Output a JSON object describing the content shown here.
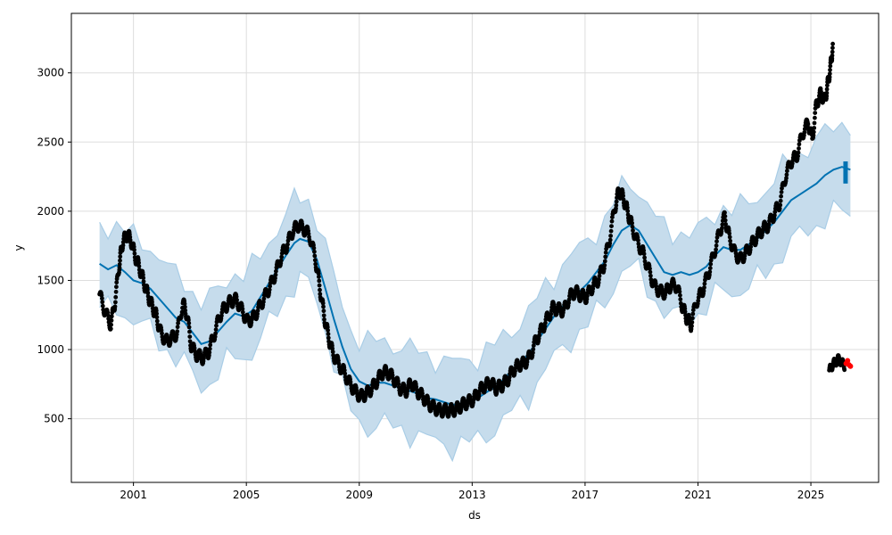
{
  "chart_data": {
    "type": "line",
    "title": "",
    "xlabel": "ds",
    "ylabel": "y",
    "xlim": [
      1998.8,
      2027.4
    ],
    "ylim": [
      40,
      3430
    ],
    "grid": true,
    "legend": "none",
    "x_ticks": [
      {
        "value": 2001,
        "label": "2001"
      },
      {
        "value": 2005,
        "label": "2005"
      },
      {
        "value": 2009,
        "label": "2009"
      },
      {
        "value": 2013,
        "label": "2013"
      },
      {
        "value": 2017,
        "label": "2017"
      },
      {
        "value": 2021,
        "label": "2021"
      },
      {
        "value": 2025,
        "label": "2025"
      }
    ],
    "y_ticks": [
      {
        "value": 500,
        "label": "500"
      },
      {
        "value": 1000,
        "label": "1000"
      },
      {
        "value": 1500,
        "label": "1500"
      },
      {
        "value": 2000,
        "label": "2000"
      },
      {
        "value": 2500,
        "label": "2500"
      },
      {
        "value": 3000,
        "label": "3000"
      }
    ],
    "colors": {
      "observed": "#000000",
      "forecast_line": "#0072B2",
      "interval_fill": "#c6dcec",
      "interval_edge": "#a9cde6",
      "highlight": "#ff0000",
      "grid": "#dddddd"
    },
    "series": [
      {
        "kind": "observed",
        "points": [
          [
            1999.8,
            1400
          ],
          [
            2000.0,
            1270
          ],
          [
            2000.2,
            1180
          ],
          [
            2000.35,
            1350
          ],
          [
            2000.5,
            1620
          ],
          [
            2000.6,
            1760
          ],
          [
            2000.75,
            1830
          ],
          [
            2000.9,
            1800
          ],
          [
            2001.05,
            1680
          ],
          [
            2001.2,
            1600
          ],
          [
            2001.35,
            1500
          ],
          [
            2001.5,
            1400
          ],
          [
            2001.65,
            1320
          ],
          [
            2001.8,
            1250
          ],
          [
            2001.95,
            1130
          ],
          [
            2002.15,
            1060
          ],
          [
            2002.35,
            1080
          ],
          [
            2002.55,
            1120
          ],
          [
            2002.75,
            1340
          ],
          [
            2002.9,
            1250
          ],
          [
            2003.05,
            1020
          ],
          [
            2003.25,
            960
          ],
          [
            2003.45,
            940
          ],
          [
            2003.65,
            980
          ],
          [
            2003.85,
            1100
          ],
          [
            2004.05,
            1240
          ],
          [
            2004.25,
            1310
          ],
          [
            2004.45,
            1350
          ],
          [
            2004.65,
            1360
          ],
          [
            2004.85,
            1280
          ],
          [
            2005.05,
            1200
          ],
          [
            2005.25,
            1230
          ],
          [
            2005.45,
            1300
          ],
          [
            2005.65,
            1380
          ],
          [
            2005.85,
            1460
          ],
          [
            2006.05,
            1560
          ],
          [
            2006.25,
            1680
          ],
          [
            2006.45,
            1760
          ],
          [
            2006.65,
            1860
          ],
          [
            2006.85,
            1900
          ],
          [
            2007.05,
            1870
          ],
          [
            2007.25,
            1820
          ],
          [
            2007.45,
            1650
          ],
          [
            2007.6,
            1450
          ],
          [
            2007.75,
            1250
          ],
          [
            2007.9,
            1100
          ],
          [
            2008.05,
            980
          ],
          [
            2008.25,
            900
          ],
          [
            2008.45,
            840
          ],
          [
            2008.65,
            760
          ],
          [
            2008.85,
            700
          ],
          [
            2009.05,
            660
          ],
          [
            2009.25,
            680
          ],
          [
            2009.45,
            720
          ],
          [
            2009.65,
            780
          ],
          [
            2009.85,
            840
          ],
          [
            2010.05,
            830
          ],
          [
            2010.25,
            780
          ],
          [
            2010.45,
            720
          ],
          [
            2010.65,
            700
          ],
          [
            2010.85,
            760
          ],
          [
            2011.05,
            700
          ],
          [
            2011.25,
            660
          ],
          [
            2011.45,
            610
          ],
          [
            2011.65,
            580
          ],
          [
            2011.85,
            560
          ],
          [
            2012.05,
            560
          ],
          [
            2012.25,
            560
          ],
          [
            2012.45,
            570
          ],
          [
            2012.65,
            600
          ],
          [
            2012.85,
            620
          ],
          [
            2013.05,
            640
          ],
          [
            2013.25,
            700
          ],
          [
            2013.45,
            740
          ],
          [
            2013.65,
            760
          ],
          [
            2013.85,
            720
          ],
          [
            2014.05,
            740
          ],
          [
            2014.25,
            780
          ],
          [
            2014.45,
            850
          ],
          [
            2014.65,
            890
          ],
          [
            2014.85,
            900
          ],
          [
            2015.05,
            950
          ],
          [
            2015.25,
            1060
          ],
          [
            2015.45,
            1140
          ],
          [
            2015.65,
            1220
          ],
          [
            2015.85,
            1300
          ],
          [
            2016.05,
            1290
          ],
          [
            2016.25,
            1280
          ],
          [
            2016.45,
            1380
          ],
          [
            2016.65,
            1420
          ],
          [
            2016.85,
            1390
          ],
          [
            2017.05,
            1380
          ],
          [
            2017.25,
            1450
          ],
          [
            2017.45,
            1500
          ],
          [
            2017.65,
            1600
          ],
          [
            2017.85,
            1780
          ],
          [
            2018.05,
            2020
          ],
          [
            2018.2,
            2150
          ],
          [
            2018.35,
            2100
          ],
          [
            2018.5,
            2000
          ],
          [
            2018.65,
            1900
          ],
          [
            2018.85,
            1780
          ],
          [
            2019.05,
            1700
          ],
          [
            2019.25,
            1580
          ],
          [
            2019.45,
            1460
          ],
          [
            2019.65,
            1420
          ],
          [
            2019.85,
            1410
          ],
          [
            2020.05,
            1470
          ],
          [
            2020.25,
            1460
          ],
          [
            2020.45,
            1310
          ],
          [
            2020.6,
            1230
          ],
          [
            2020.75,
            1180
          ],
          [
            2020.95,
            1350
          ],
          [
            2021.15,
            1420
          ],
          [
            2021.35,
            1540
          ],
          [
            2021.55,
            1680
          ],
          [
            2021.75,
            1840
          ],
          [
            2021.95,
            1960
          ],
          [
            2022.1,
            1820
          ],
          [
            2022.3,
            1700
          ],
          [
            2022.5,
            1650
          ],
          [
            2022.7,
            1700
          ],
          [
            2022.9,
            1760
          ],
          [
            2023.1,
            1820
          ],
          [
            2023.3,
            1870
          ],
          [
            2023.5,
            1900
          ],
          [
            2023.7,
            1980
          ],
          [
            2023.9,
            2060
          ],
          [
            2024.1,
            2250
          ],
          [
            2024.3,
            2360
          ],
          [
            2024.5,
            2400
          ],
          [
            2024.7,
            2560
          ],
          [
            2024.9,
            2640
          ],
          [
            2025.05,
            2520
          ],
          [
            2025.2,
            2780
          ],
          [
            2025.35,
            2850
          ],
          [
            2025.5,
            2800
          ],
          [
            2025.6,
            2920
          ],
          [
            2025.7,
            3050
          ],
          [
            2025.78,
            3200
          ]
        ]
      },
      {
        "kind": "observed_low_cluster",
        "points": [
          [
            2025.65,
            850
          ],
          [
            2025.72,
            870
          ],
          [
            2025.8,
            900
          ],
          [
            2025.88,
            910
          ],
          [
            2025.96,
            930
          ],
          [
            2026.04,
            920
          ],
          [
            2026.12,
            900
          ],
          [
            2026.2,
            880
          ]
        ]
      },
      {
        "kind": "highlight",
        "points": [
          [
            2026.25,
            900
          ],
          [
            2026.3,
            920
          ],
          [
            2026.35,
            890
          ],
          [
            2026.4,
            880
          ]
        ]
      },
      {
        "kind": "forecast",
        "points": [
          [
            1999.8,
            1620
          ],
          [
            2000.1,
            1580
          ],
          [
            2000.4,
            1610
          ],
          [
            2000.7,
            1560
          ],
          [
            2001.0,
            1500
          ],
          [
            2001.3,
            1480
          ],
          [
            2001.6,
            1440
          ],
          [
            2001.9,
            1370
          ],
          [
            2002.2,
            1300
          ],
          [
            2002.5,
            1230
          ],
          [
            2002.8,
            1200
          ],
          [
            2003.1,
            1120
          ],
          [
            2003.4,
            1040
          ],
          [
            2003.7,
            1060
          ],
          [
            2004.0,
            1130
          ],
          [
            2004.3,
            1200
          ],
          [
            2004.6,
            1260
          ],
          [
            2004.9,
            1240
          ],
          [
            2005.2,
            1280
          ],
          [
            2005.5,
            1380
          ],
          [
            2005.8,
            1480
          ],
          [
            2006.1,
            1580
          ],
          [
            2006.4,
            1680
          ],
          [
            2006.7,
            1770
          ],
          [
            2006.9,
            1800
          ],
          [
            2007.2,
            1780
          ],
          [
            2007.5,
            1650
          ],
          [
            2007.8,
            1440
          ],
          [
            2008.1,
            1220
          ],
          [
            2008.4,
            1020
          ],
          [
            2008.7,
            860
          ],
          [
            2009.0,
            770
          ],
          [
            2009.3,
            740
          ],
          [
            2009.6,
            760
          ],
          [
            2009.9,
            760
          ],
          [
            2010.2,
            740
          ],
          [
            2010.5,
            720
          ],
          [
            2010.8,
            700
          ],
          [
            2011.1,
            680
          ],
          [
            2011.4,
            650
          ],
          [
            2011.7,
            640
          ],
          [
            2012.0,
            620
          ],
          [
            2012.3,
            600
          ],
          [
            2012.6,
            610
          ],
          [
            2012.9,
            630
          ],
          [
            2013.2,
            650
          ],
          [
            2013.5,
            690
          ],
          [
            2013.8,
            730
          ],
          [
            2014.1,
            780
          ],
          [
            2014.4,
            850
          ],
          [
            2014.7,
            900
          ],
          [
            2015.0,
            970
          ],
          [
            2015.3,
            1060
          ],
          [
            2015.6,
            1150
          ],
          [
            2015.9,
            1240
          ],
          [
            2016.2,
            1310
          ],
          [
            2016.5,
            1380
          ],
          [
            2016.8,
            1420
          ],
          [
            2017.1,
            1480
          ],
          [
            2017.4,
            1560
          ],
          [
            2017.7,
            1640
          ],
          [
            2018.0,
            1760
          ],
          [
            2018.3,
            1860
          ],
          [
            2018.6,
            1900
          ],
          [
            2018.9,
            1860
          ],
          [
            2019.2,
            1760
          ],
          [
            2019.5,
            1660
          ],
          [
            2019.8,
            1560
          ],
          [
            2020.1,
            1540
          ],
          [
            2020.4,
            1560
          ],
          [
            2020.7,
            1540
          ],
          [
            2021.0,
            1560
          ],
          [
            2021.3,
            1600
          ],
          [
            2021.6,
            1680
          ],
          [
            2021.9,
            1740
          ],
          [
            2022.2,
            1720
          ],
          [
            2022.5,
            1720
          ],
          [
            2022.8,
            1760
          ],
          [
            2023.1,
            1800
          ],
          [
            2023.4,
            1860
          ],
          [
            2023.7,
            1920
          ],
          [
            2024.0,
            2000
          ],
          [
            2024.3,
            2080
          ],
          [
            2024.6,
            2120
          ],
          [
            2024.9,
            2160
          ],
          [
            2025.2,
            2200
          ],
          [
            2025.5,
            2260
          ],
          [
            2025.8,
            2300
          ],
          [
            2026.1,
            2320
          ],
          [
            2026.4,
            2300
          ]
        ]
      }
    ],
    "interval_half_width": 300
  }
}
